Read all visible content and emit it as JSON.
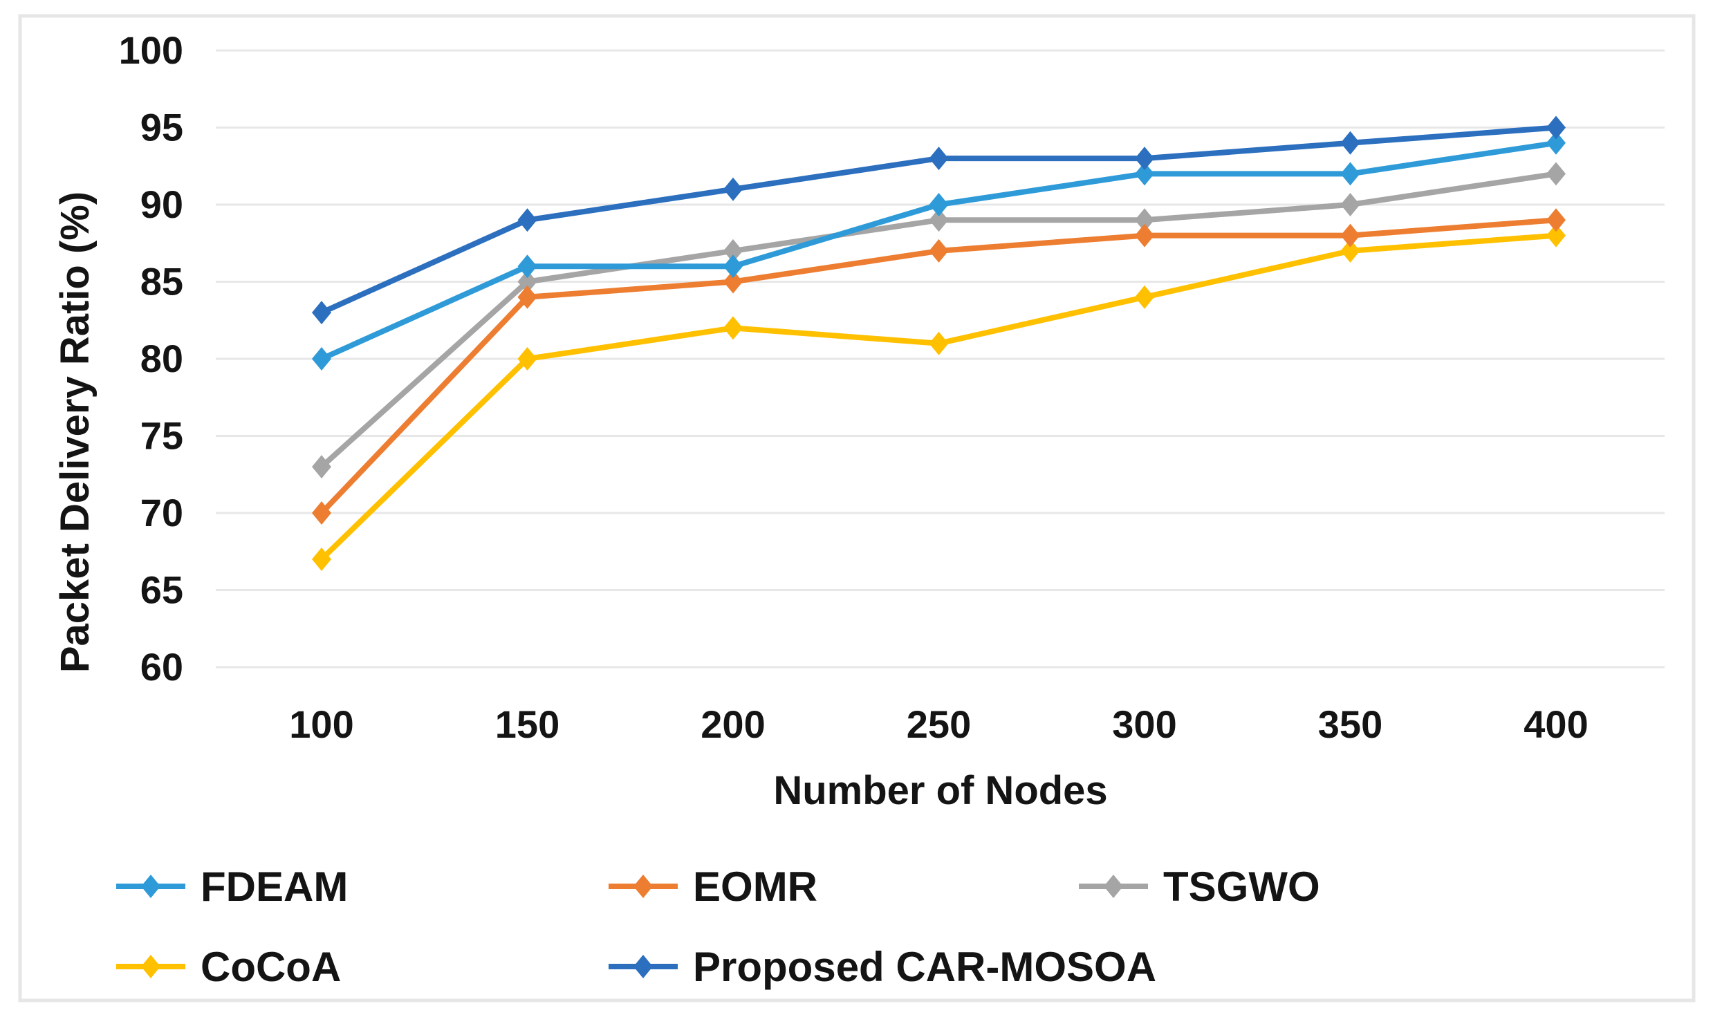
{
  "figure": {
    "background": "#ffffff",
    "border_color": "#e6e6e6"
  },
  "chart_data": {
    "type": "line",
    "title": "",
    "xlabel": "Number of Nodes",
    "ylabel": "Packet Delivery Ratio (%)",
    "categories": [
      100,
      150,
      200,
      250,
      300,
      350,
      400
    ],
    "yticks": [
      100,
      95,
      90,
      85,
      80,
      75,
      70,
      65,
      60
    ],
    "ylim": [
      60,
      100
    ],
    "grid": "horizontal",
    "gridline_color": "#e7e7e7",
    "text_color": "#141414",
    "marker_shape": "diamond",
    "legend_position": "bottom-left, two rows, three columns",
    "series": [
      {
        "name": "FDEAM",
        "color": "#2E9BD8",
        "values": [
          80,
          86,
          86,
          90,
          92,
          92,
          94
        ]
      },
      {
        "name": "EOMR",
        "color": "#ED7D31",
        "values": [
          70,
          84,
          85,
          87,
          88,
          88,
          89
        ]
      },
      {
        "name": "TSGWO",
        "color": "#A5A5A5",
        "values": [
          73,
          85,
          87,
          89,
          89,
          90,
          92
        ]
      },
      {
        "name": "CoCoA",
        "color": "#FFC000",
        "values": [
          67,
          80,
          82,
          81,
          84,
          87,
          88
        ]
      },
      {
        "name": "Proposed CAR-MOSOA",
        "color": "#2B6FBE",
        "values": [
          83,
          89,
          91,
          93,
          93,
          94,
          95
        ]
      }
    ]
  }
}
